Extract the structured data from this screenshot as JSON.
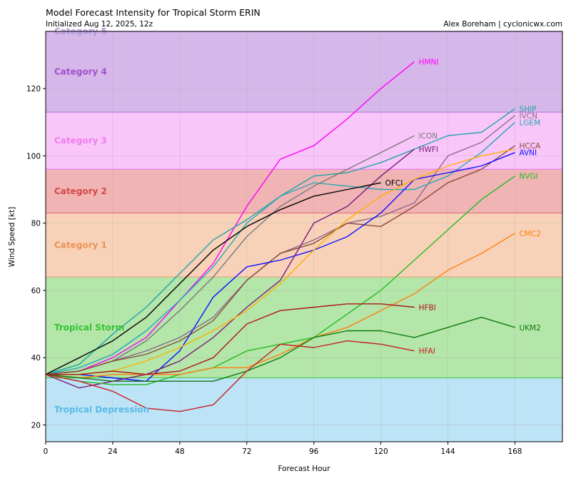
{
  "chart_data": {
    "type": "line",
    "title": "Model Forecast Intensity for Tropical Storm ERIN",
    "subtitle": "Initialized Aug 12, 2025, 12z",
    "credit": "Alex Boreham | cyclonicwx.com",
    "xlabel": "Forecast Hour",
    "ylabel": "Wind Speed [kt]",
    "xlim": [
      0,
      185
    ],
    "ylim": [
      15,
      137
    ],
    "xticks": [
      0,
      24,
      48,
      72,
      96,
      120,
      144,
      168
    ],
    "yticks": [
      20,
      40,
      60,
      80,
      100,
      120
    ],
    "grid": true,
    "bands": [
      {
        "label": "Tropical Depression",
        "min": 15,
        "max": 34,
        "fill": "#bde3f7",
        "edge": "#bde3f7",
        "text_color": "#5bbbe6"
      },
      {
        "label": "Tropical Storm",
        "min": 34,
        "max": 64,
        "fill": "#b3e6a8",
        "edge": "#4cc94c",
        "text_color": "#35c235"
      },
      {
        "label": "Category 1",
        "min": 64,
        "max": 83,
        "fill": "#f8d2b8",
        "edge": "#e8a477",
        "text_color": "#ec9159"
      },
      {
        "label": "Category 2",
        "min": 83,
        "max": 96,
        "fill": "#f0b4b4",
        "edge": "#e07a7a",
        "text_color": "#d44848"
      },
      {
        "label": "Category 3",
        "min": 96,
        "max": 113,
        "fill": "#f9c6f9",
        "edge": "#e97de9",
        "text_color": "#ef7cef"
      },
      {
        "label": "Category 4",
        "min": 113,
        "max": 137,
        "fill": "#d6b7e9",
        "edge": "#b77fd9",
        "text_color": "#a050cc"
      },
      {
        "label": "Category 5",
        "min": 137,
        "max": 137,
        "fill": "#d6b7e9",
        "edge": "#b77fd9",
        "text_color": "#b39ddb"
      }
    ],
    "series": [
      {
        "name": "HMNI",
        "color": "#ff00ff",
        "x": [
          0,
          12,
          24,
          36,
          48,
          60,
          72,
          84,
          96,
          108,
          120,
          132
        ],
        "y": [
          35,
          36,
          40,
          46,
          57,
          68,
          85,
          99,
          103,
          111,
          120,
          128
        ]
      },
      {
        "name": "SHIP",
        "color": "#1fa3a8",
        "x": [
          0,
          12,
          24,
          36,
          48,
          60,
          72,
          84,
          96,
          108,
          120,
          132,
          144,
          156,
          168
        ],
        "y": [
          35,
          38,
          47,
          55,
          65,
          75,
          81,
          88,
          94,
          95,
          98,
          102,
          106,
          107,
          114
        ]
      },
      {
        "name": "IVCN",
        "color": "#8c6b8c",
        "x": [
          0,
          12,
          24,
          36,
          48,
          60,
          72,
          84,
          96,
          108,
          120,
          132,
          144,
          156,
          168
        ],
        "y": [
          35,
          36,
          39,
          42,
          46,
          52,
          63,
          71,
          75,
          80,
          82,
          86,
          100,
          104,
          112
        ]
      },
      {
        "name": "LGEM",
        "color": "#2aa7b8",
        "x": [
          0,
          12,
          24,
          36,
          48,
          60,
          72,
          84,
          96,
          108,
          120,
          132,
          144,
          156,
          168
        ],
        "y": [
          35,
          37,
          41,
          48,
          57,
          67,
          80,
          88,
          92,
          91,
          90,
          90,
          94,
          101,
          110
        ]
      },
      {
        "name": "ICON",
        "color": "#7a7a7a",
        "x": [
          0,
          12,
          24,
          36,
          48,
          60,
          72,
          84,
          96,
          108,
          120,
          132
        ],
        "y": [
          35,
          36,
          39,
          45,
          54,
          64,
          76,
          85,
          91,
          96,
          101,
          106
        ]
      },
      {
        "name": "HCCA",
        "color": "#8b4a3c",
        "x": [
          0,
          12,
          24,
          36,
          48,
          60,
          72,
          84,
          96,
          108,
          120,
          132,
          144,
          156,
          168
        ],
        "y": [
          35,
          36,
          39,
          41,
          45,
          51,
          63,
          71,
          74,
          80,
          79,
          85,
          92,
          96,
          103
        ]
      },
      {
        "name": "AVNI",
        "color": "#1010ff",
        "x": [
          0,
          12,
          24,
          36,
          48,
          60,
          72,
          84,
          96,
          108,
          120,
          132,
          144,
          156,
          168
        ],
        "y": [
          35,
          35,
          34,
          33,
          42,
          58,
          67,
          69,
          72,
          76,
          83,
          93,
          95,
          97,
          101
        ]
      },
      {
        "name": "HWFI",
        "color": "#7b1a7b",
        "x": [
          0,
          12,
          24,
          36,
          48,
          60,
          72,
          84,
          96,
          108,
          120,
          132
        ],
        "y": [
          35,
          31,
          33,
          35,
          39,
          46,
          55,
          63,
          80,
          85,
          94,
          102
        ]
      },
      {
        "name": "OFCI",
        "color": "#000000",
        "x": [
          0,
          12,
          24,
          36,
          48,
          60,
          72,
          84,
          96,
          108,
          120
        ],
        "y": [
          35,
          40,
          45,
          52,
          62,
          72,
          79,
          84,
          88,
          90,
          92
        ]
      },
      {
        "name": "NVGI",
        "color": "#22bb22",
        "x": [
          0,
          12,
          24,
          36,
          48,
          60,
          72,
          84,
          96,
          108,
          120,
          132,
          144,
          156,
          168
        ],
        "y": [
          35,
          33,
          32,
          32,
          35,
          37,
          42,
          44,
          46,
          53,
          60,
          69,
          78,
          87,
          94
        ]
      },
      {
        "name": "CMC2",
        "color": "#ff7f0e",
        "x": [
          0,
          12,
          24,
          36,
          48,
          60,
          72,
          84,
          96,
          108,
          120,
          132,
          144,
          156,
          168
        ],
        "y": [
          35,
          34,
          35,
          35,
          35,
          37,
          37,
          41,
          46,
          49,
          54,
          59,
          66,
          71,
          77
        ]
      },
      {
        "name": "",
        "color": "#ffb000",
        "x": [
          0,
          12,
          24,
          36,
          48,
          60,
          72,
          84,
          96,
          108,
          120,
          132,
          144,
          156,
          168
        ],
        "y": [
          35,
          35,
          36,
          39,
          43,
          48,
          54,
          62,
          72,
          81,
          88,
          93,
          97,
          100,
          102
        ]
      },
      {
        "name": "HFBI",
        "color": "#b01515",
        "x": [
          0,
          12,
          24,
          36,
          48,
          60,
          72,
          84,
          96,
          108,
          120,
          132
        ],
        "y": [
          35,
          35,
          36,
          35,
          36,
          40,
          50,
          54,
          55,
          56,
          56,
          55
        ]
      },
      {
        "name": "UKM2",
        "color": "#0f7a0f",
        "x": [
          0,
          12,
          24,
          36,
          48,
          60,
          72,
          84,
          96,
          108,
          120,
          132,
          144,
          156,
          168
        ],
        "y": [
          35,
          34,
          33,
          33,
          33,
          33,
          36,
          40,
          46,
          48,
          48,
          46,
          49,
          52,
          49
        ]
      },
      {
        "name": "HFAI",
        "color": "#c42020",
        "x": [
          0,
          12,
          24,
          36,
          48,
          60,
          72,
          84,
          96,
          108,
          120,
          132
        ],
        "y": [
          35,
          33,
          30,
          25,
          24,
          26,
          36,
          44,
          43,
          45,
          44,
          42
        ]
      }
    ]
  }
}
